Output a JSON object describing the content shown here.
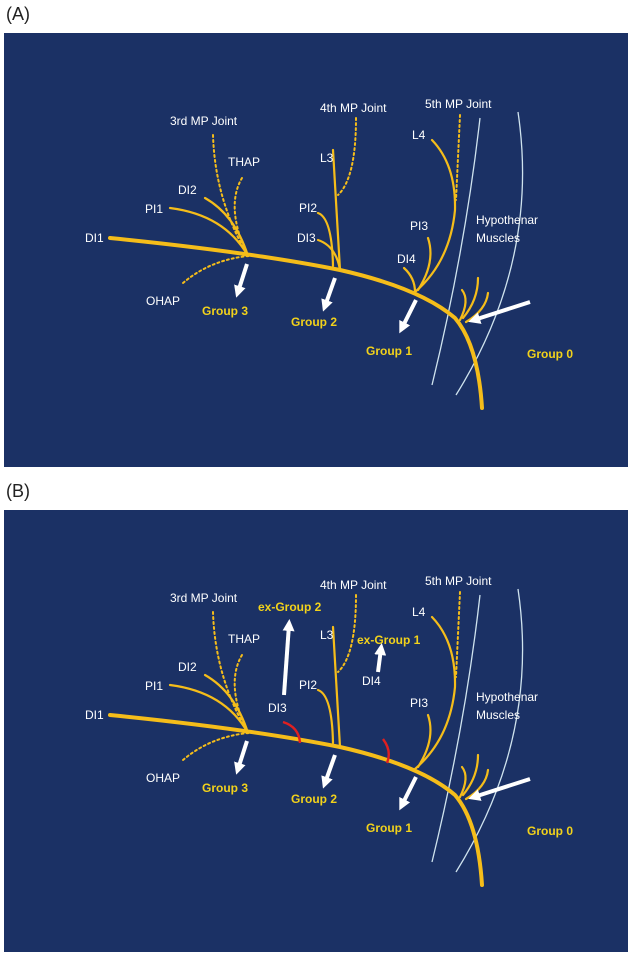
{
  "panels": [
    {
      "label": "(A)",
      "joints": [
        "3rd MP Joint",
        "4th MP Joint",
        "5th MP Joint"
      ],
      "nerves": {
        "thap": "THAP",
        "l3": "L3",
        "l4": "L4",
        "di2": "DI2",
        "pi1": "PI1",
        "pi2": "PI2",
        "di3": "DI3",
        "pi3": "PI3",
        "di4": "DI4",
        "di1": "DI1",
        "ohap": "OHAP"
      },
      "muscles": [
        "Hypothenar",
        "Muscles"
      ],
      "groups": [
        "Group 3",
        "Group 2",
        "Group 1",
        "Group 0"
      ]
    },
    {
      "label": "(B)",
      "joints": [
        "3rd MP Joint",
        "4th MP Joint",
        "5th MP Joint"
      ],
      "nerves": {
        "thap": "THAP",
        "l3": "L3",
        "l4": "L4",
        "di2": "DI2",
        "pi1": "PI1",
        "pi2": "PI2",
        "di3": "DI3",
        "pi3": "PI3",
        "di4": "DI4",
        "di1": "DI1",
        "ohap": "OHAP"
      },
      "muscles": [
        "Hypothenar",
        "Muscles"
      ],
      "groups": [
        "Group 3",
        "Group 2",
        "Group 1",
        "Group 0"
      ],
      "ex_groups": [
        "ex-Group 2",
        "ex-Group 1"
      ]
    }
  ]
}
